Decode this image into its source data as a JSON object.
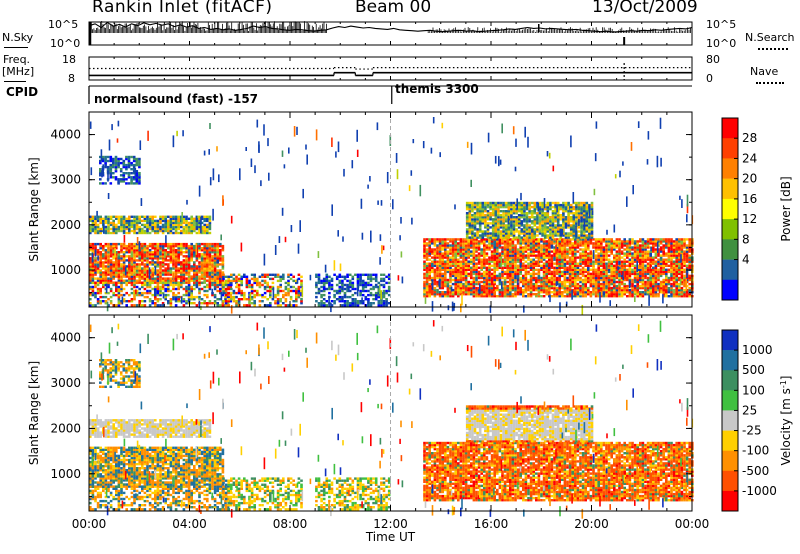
{
  "header": {
    "title": "Rankin Inlet (fitACF)",
    "beam": "Beam 00",
    "date": "13/Oct/2009"
  },
  "left_labels": {
    "nsky": "N.Sky",
    "freq_line1": "Freq.",
    "freq_line2": "[MHz]",
    "cpid": "CPID"
  },
  "right_labels": {
    "nsearch": "N.Search",
    "nave": "Nave"
  },
  "cpid_labels": {
    "first": "normalsound (fast) -157",
    "second": "themis 3300"
  },
  "chart_data": [
    {
      "type": "line",
      "name": "noise",
      "ylabel_left": "N.Sky",
      "ylabel_right": "N.Search",
      "left_ticks": [
        "10^5",
        "10^0"
      ],
      "right_ticks": [
        "10^5",
        "10^0"
      ],
      "y_log_range": [
        0,
        5
      ],
      "series": [
        {
          "values_log": [
            4.2,
            4.6,
            3.8,
            4.9,
            4.1,
            4.5,
            3.9,
            4.6,
            4.2,
            4.8,
            4.4,
            4.7,
            4.3,
            4.6,
            4.0,
            4.4,
            3.9,
            4.2,
            3.6,
            3.8,
            3.4,
            3.6,
            3.3,
            3.5,
            3.2,
            3.4,
            3.6,
            4.1,
            3.8,
            4.0,
            3.6,
            3.5,
            3.3,
            3.2,
            3.4,
            3.3,
            3.1,
            3.0,
            3.2,
            3.3,
            3.7,
            4.0,
            3.8,
            4.1,
            3.9,
            3.7,
            3.8,
            3.6,
            3.5,
            3.4,
            3.6,
            3.3,
            3.2,
            3.1,
            3.0,
            3.1,
            3.2,
            3.0,
            2.9,
            3.0,
            3.1,
            3.2,
            3.0,
            3.1,
            2.9,
            3.0,
            3.1,
            3.2,
            3.3,
            3.5,
            3.4,
            3.6,
            3.8,
            3.6,
            3.7,
            3.5,
            3.6,
            3.5,
            3.4,
            3.3,
            3.4,
            3.2,
            3.1,
            3.0,
            2.9,
            3.0,
            2.8,
            2.9,
            3.0,
            3.1,
            3.0,
            3.2,
            3.1,
            3.3,
            3.2,
            3.4,
            3.5,
            3.6,
            3.5,
            3.8
          ]
        }
      ]
    },
    {
      "type": "line",
      "name": "frequency",
      "ylabel_left": "Freq. [MHz]",
      "ylabel_right": "Nave",
      "left_ticks": [
        "18",
        "8"
      ],
      "right_ticks": [
        "80",
        "0"
      ],
      "series": [
        {
          "segments": [
            [
              0.0,
              9.75,
              10.0
            ],
            [
              9.75,
              10.6,
              11.2
            ],
            [
              10.6,
              11.3,
              10.0
            ],
            [
              11.3,
              24.0,
              11.2
            ]
          ]
        },
        {
          "segments": [
            [
              0.0,
              9.75,
              40
            ],
            [
              9.75,
              10.6,
              43
            ],
            [
              10.6,
              11.3,
              38
            ],
            [
              11.3,
              24.0,
              43
            ]
          ]
        }
      ]
    },
    {
      "type": "heatmap",
      "name": "power",
      "ylabel": "Slant Range [km]",
      "ylim": [
        180,
        4500
      ],
      "yticks": [
        1000,
        2000,
        3000,
        4000
      ],
      "xlim": [
        0,
        24
      ],
      "colorbar_label": "Power [dB]",
      "colorbar_ticks": [
        "28",
        "24",
        "20",
        "16",
        "12",
        "8",
        "4"
      ],
      "colorbar_colors": [
        "#ff0000",
        "#ff4000",
        "#ff8000",
        "#ffc000",
        "#ffff00",
        "#80c000",
        "#409040",
        "#2060a0",
        "#0000ff"
      ],
      "bands": [
        {
          "x0": 0.0,
          "x1": 5.3,
          "r0": 700,
          "r1": 1600,
          "level": "high"
        },
        {
          "x0": 0.0,
          "x1": 4.8,
          "r0": 1800,
          "r1": 2200,
          "level": "mid"
        },
        {
          "x0": 0.4,
          "x1": 2.0,
          "r0": 2900,
          "r1": 3500,
          "level": "low"
        },
        {
          "x0": 0.0,
          "x1": 5.6,
          "r0": 200,
          "r1": 700,
          "level": "mixed"
        },
        {
          "x0": 5.3,
          "x1": 8.5,
          "r0": 200,
          "r1": 900,
          "level": "mixed"
        },
        {
          "x0": 9.0,
          "x1": 12.0,
          "r0": 200,
          "r1": 900,
          "level": "low"
        },
        {
          "x0": 13.3,
          "x1": 24.0,
          "r0": 400,
          "r1": 1700,
          "level": "high"
        },
        {
          "x0": 15.0,
          "x1": 20.0,
          "r0": 1700,
          "r1": 2500,
          "level": "mid"
        }
      ]
    },
    {
      "type": "heatmap",
      "name": "velocity",
      "ylabel": "Slant Range [km]",
      "ylim": [
        180,
        4500
      ],
      "yticks": [
        1000,
        2000,
        3000,
        4000
      ],
      "xlim": [
        0,
        24
      ],
      "xticks": [
        "00:00",
        "04:00",
        "08:00",
        "12:00",
        "16:00",
        "20:00",
        "00:00"
      ],
      "xlabel": "Time UT",
      "colorbar_label": "Velocity [m s^-1]",
      "colorbar_ticks": [
        "1000",
        "500",
        "100",
        "25",
        "-25",
        "-100",
        "-500",
        "-1000"
      ],
      "colorbar_colors": [
        "#1030c0",
        "#2070a0",
        "#3c8f60",
        "#40c040",
        "#c8c8c8",
        "#ffd000",
        "#ff9000",
        "#ff5000",
        "#ff0000"
      ]
    }
  ]
}
